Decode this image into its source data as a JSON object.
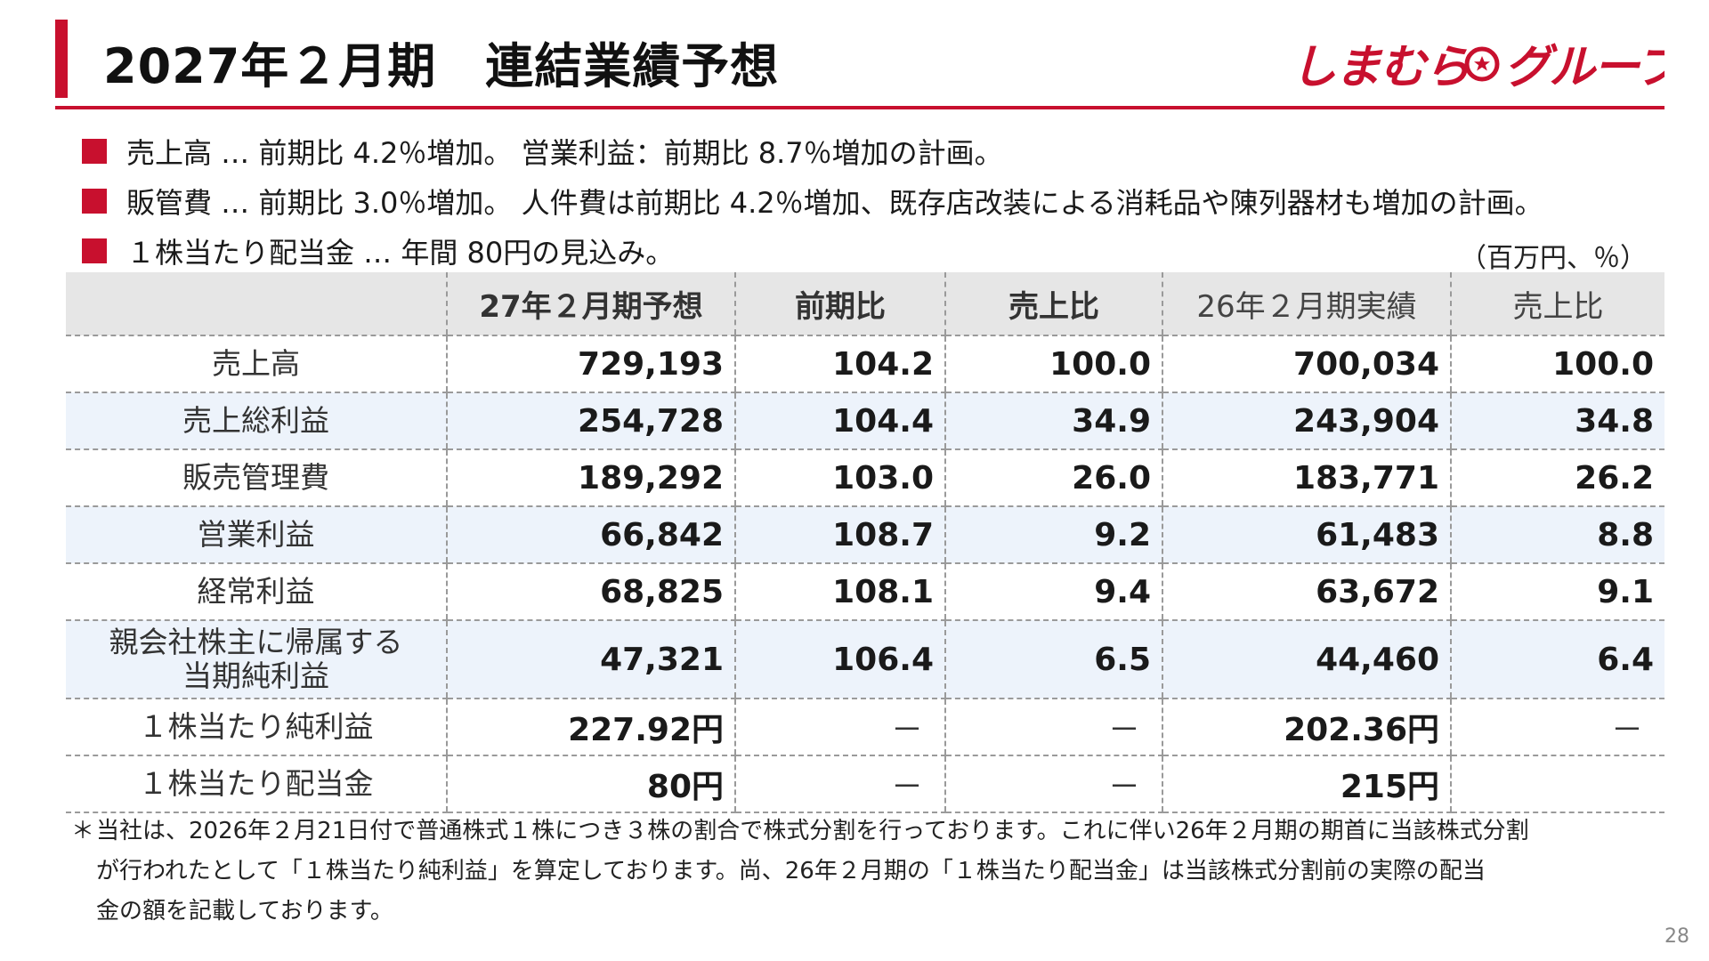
{
  "header": {
    "title": "2027年２月期　連結業績予想",
    "logo_text": "しまむらグループ",
    "brand_color": "#c8102e"
  },
  "bullets": [
    "売上高 … 前期比 4.2％増加。 営業利益：前期比 8.7％増加の計画。",
    "販管費 … 前期比 3.0％増加。 人件費は前期比 4.2％増加、既存店改装による消耗品や陳列器材も増加の計画。",
    "１株当たり配当金 … 年間 80円の見込み。"
  ],
  "unit_note": "（百万円、％）",
  "table": {
    "headers": [
      "",
      "27年２月期予想",
      "前期比",
      "売上比",
      "26年２月期実績",
      "売上比"
    ],
    "rows": [
      {
        "label": "売上高",
        "cells": [
          "729,193",
          "104.2",
          "100.0",
          "700,034",
          "100.0"
        ]
      },
      {
        "label": "売上総利益",
        "cells": [
          "254,728",
          "104.4",
          "34.9",
          "243,904",
          "34.8"
        ]
      },
      {
        "label": "販売管理費",
        "cells": [
          "189,292",
          "103.0",
          "26.0",
          "183,771",
          "26.2"
        ]
      },
      {
        "label": "営業利益",
        "cells": [
          "66,842",
          "108.7",
          "9.2",
          "61,483",
          "8.8"
        ]
      },
      {
        "label": "経常利益",
        "cells": [
          "68,825",
          "108.1",
          "9.4",
          "63,672",
          "9.1"
        ]
      },
      {
        "label_line1": "親会社株主に帰属する",
        "label_line2": "当期純利益",
        "cells": [
          "47,321",
          "106.4",
          "6.5",
          "44,460",
          "6.4"
        ]
      },
      {
        "label": "１株当たり純利益",
        "cells": [
          "227.92円",
          "－",
          "－",
          "202.36円",
          "－"
        ]
      },
      {
        "label": "１株当たり配当金",
        "cells": [
          "80円",
          "－",
          "－",
          "215円",
          ""
        ]
      }
    ]
  },
  "footnote": {
    "mark": "＊",
    "line1": "当社は、2026年２月21日付で普通株式１株につき３株の割合で株式分割を行っております。これに伴い26年２月期の期首に当該株式分割",
    "line2": "が行われたとして「１株当たり純利益」を算定しております。尚、26年２月期の「１株当たり配当金」は当該株式分割前の実際の配当",
    "line3": "金の額を記載しております。"
  },
  "page_number": "28"
}
